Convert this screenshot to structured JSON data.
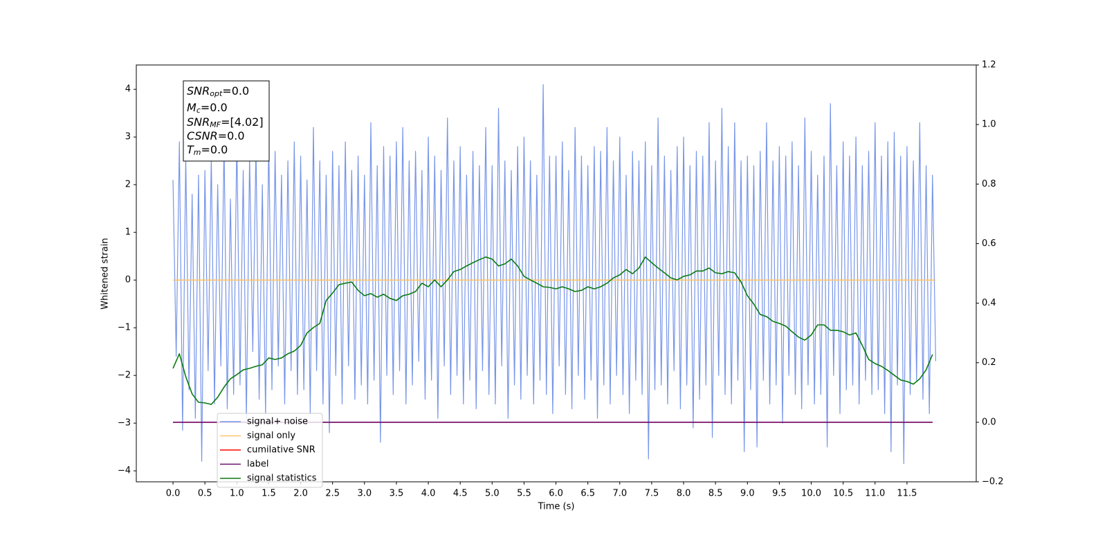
{
  "chart_data": {
    "type": "line",
    "xlabel": "Time (s)",
    "ylabel": "Whitened strain",
    "xlim": [
      -0.575,
      12.585
    ],
    "ylim": [
      -4.23,
      4.51
    ],
    "y2lim": [
      -0.2,
      1.2
    ],
    "xticks": [
      {
        "value": 0,
        "label": "0.0"
      },
      0.5,
      {
        "value": 1,
        "label": "1.0"
      },
      1.5,
      {
        "value": 2,
        "label": "2.0"
      },
      2.5,
      {
        "value": 3,
        "label": "3.0"
      },
      3.5,
      {
        "value": 4,
        "label": "4.0"
      },
      4.5,
      {
        "value": 5,
        "label": "5.0"
      },
      5.5,
      {
        "value": 6,
        "label": "6.0"
      },
      6.5,
      {
        "value": 7,
        "label": "7.0"
      },
      7.5,
      {
        "value": 8,
        "label": "8.0"
      },
      8.5,
      {
        "value": 9,
        "label": "9.0"
      },
      9.5,
      {
        "value": 10,
        "label": "10.0"
      },
      10.5,
      {
        "value": 11,
        "label": "11.0"
      },
      11.5
    ],
    "yticks": [
      {
        "value": -4,
        "label": "−4"
      },
      {
        "value": -3,
        "label": "−3"
      },
      {
        "value": -2,
        "label": "−2"
      },
      {
        "value": -1,
        "label": "−1"
      },
      0,
      1,
      2,
      3,
      4
    ],
    "y2ticks": [
      {
        "value": -0.2,
        "label": "−0.2"
      },
      {
        "value": 0,
        "label": "0.0"
      },
      0.2,
      0.4,
      0.6,
      0.8,
      {
        "value": 1,
        "label": "1.0"
      },
      1.2
    ],
    "annotations": [
      {
        "main": "SNR",
        "sub": "opt",
        "text": "=0.0"
      },
      {
        "main": "M",
        "sub": "c",
        "text": "=0.0"
      },
      {
        "main": "SNR",
        "sub": "MF",
        "text": "=[4.02]"
      },
      {
        "main": "CSNR",
        "text": "=0.0"
      },
      {
        "main": "T",
        "sub": "m",
        "text": "=0.0"
      }
    ],
    "series": [
      {
        "name": "signal+ noise",
        "color": "#7795e8",
        "x": [
          0,
          0.05,
          0.1,
          0.15,
          0.2,
          0.25,
          0.3,
          0.35,
          0.4,
          0.45,
          0.5,
          0.55,
          0.6,
          0.65,
          0.7,
          0.75,
          0.8,
          0.85,
          0.9,
          0.95,
          1,
          1.05,
          1.1,
          1.15,
          1.2,
          1.25,
          1.3,
          1.35,
          1.4,
          1.45,
          1.5,
          1.55,
          1.6,
          1.65,
          1.7,
          1.75,
          1.8,
          1.85,
          1.9,
          1.95,
          2,
          2.05,
          2.1,
          2.15,
          2.2,
          2.25,
          2.3,
          2.35,
          2.4,
          2.45,
          2.5,
          2.55,
          2.6,
          2.65,
          2.7,
          2.75,
          2.8,
          2.85,
          2.9,
          2.95,
          3,
          3.05,
          3.1,
          3.15,
          3.2,
          3.25,
          3.3,
          3.35,
          3.4,
          3.45,
          3.5,
          3.55,
          3.6,
          3.65,
          3.7,
          3.75,
          3.8,
          3.85,
          3.9,
          3.95,
          4,
          4.05,
          4.1,
          4.15,
          4.2,
          4.25,
          4.3,
          4.35,
          4.4,
          4.45,
          4.5,
          4.55,
          4.6,
          4.65,
          4.7,
          4.75,
          4.8,
          4.85,
          4.9,
          4.95,
          5,
          5.05,
          5.1,
          5.15,
          5.2,
          5.25,
          5.3,
          5.35,
          5.4,
          5.45,
          5.5,
          5.55,
          5.6,
          5.65,
          5.7,
          5.75,
          5.8,
          5.85,
          5.9,
          5.95,
          6,
          6.05,
          6.1,
          6.15,
          6.2,
          6.25,
          6.3,
          6.35,
          6.4,
          6.45,
          6.5,
          6.55,
          6.6,
          6.65,
          6.7,
          6.75,
          6.8,
          6.85,
          6.9,
          6.95,
          7,
          7.05,
          7.1,
          7.15,
          7.2,
          7.25,
          7.3,
          7.35,
          7.4,
          7.45,
          7.5,
          7.55,
          7.6,
          7.65,
          7.7,
          7.75,
          7.8,
          7.85,
          7.9,
          7.95,
          8,
          8.05,
          8.1,
          8.15,
          8.2,
          8.25,
          8.3,
          8.35,
          8.4,
          8.45,
          8.5,
          8.55,
          8.6,
          8.65,
          8.7,
          8.75,
          8.8,
          8.85,
          8.9,
          8.95,
          9,
          9.05,
          9.1,
          9.15,
          9.2,
          9.25,
          9.3,
          9.35,
          9.4,
          9.45,
          9.5,
          9.55,
          9.6,
          9.65,
          9.7,
          9.75,
          9.8,
          9.85,
          9.9,
          9.95,
          10,
          10.05,
          10.1,
          10.15,
          10.2,
          10.25,
          10.3,
          10.35,
          10.4,
          10.45,
          10.5,
          10.55,
          10.6,
          10.65,
          10.7,
          10.75,
          10.8,
          10.85,
          10.9,
          10.95,
          11,
          11.05,
          11.1,
          11.15,
          11.2,
          11.25,
          11.3,
          11.35,
          11.4,
          11.45,
          11.5,
          11.55,
          11.6,
          11.65,
          11.7,
          11.75,
          11.8,
          11.85,
          11.9,
          11.95
        ],
        "values": [
          2.1,
          -1.6,
          2.9,
          -3.15,
          2.6,
          -2.3,
          1.8,
          -2.9,
          2.2,
          -3.8,
          2.3,
          -1.9,
          2.6,
          -2.6,
          2.0,
          -1.8,
          2.9,
          -2.7,
          1.7,
          -2.4,
          3.0,
          -2.2,
          2.3,
          -2.9,
          2.6,
          -1.5,
          2.8,
          -2.5,
          2.0,
          -2.8,
          3.0,
          -2.3,
          2.7,
          -1.8,
          2.2,
          -2.6,
          2.5,
          -1.9,
          2.9,
          -2.4,
          2.6,
          -2.3,
          2.1,
          -2.8,
          3.2,
          -1.9,
          2.5,
          -2.6,
          2.2,
          -3.2,
          2.7,
          -2.0,
          2.4,
          -2.6,
          2.9,
          -1.8,
          2.3,
          -2.5,
          2.6,
          -2.2,
          2.2,
          -2.6,
          3.3,
          -2.1,
          2.4,
          -3.4,
          2.8,
          -2.0,
          2.6,
          -2.4,
          2.9,
          -1.9,
          3.2,
          -2.6,
          2.5,
          -2.2,
          2.7,
          -1.7,
          2.3,
          -2.5,
          3.0,
          -2.1,
          2.6,
          -2.9,
          2.3,
          -1.8,
          3.4,
          -2.4,
          2.5,
          -2.0,
          2.8,
          -2.6,
          2.2,
          -2.1,
          2.7,
          -2.7,
          2.4,
          -1.9,
          3.2,
          -2.4,
          2.4,
          -2.6,
          3.6,
          -1.8,
          2.5,
          -2.9,
          2.3,
          -2.2,
          2.8,
          -2.5,
          3.0,
          -2.0,
          2.5,
          -2.6,
          2.2,
          -2.1,
          4.1,
          -2.4,
          2.6,
          -2.8,
          2.6,
          -1.8,
          2.9,
          -2.4,
          2.3,
          -2.7,
          3.2,
          -2.0,
          2.6,
          -2.5,
          2.4,
          -2.1,
          2.8,
          -2.9,
          2.7,
          -2.2,
          3.2,
          -2.6,
          2.5,
          -2.0,
          3.0,
          -2.4,
          2.2,
          -2.8,
          2.7,
          -2.1,
          2.5,
          -2.4,
          2.9,
          -3.75,
          2.4,
          -2.3,
          3.4,
          -2.2,
          2.6,
          -2.6,
          2.3,
          -1.9,
          2.8,
          -2.7,
          3.0,
          -2.2,
          2.4,
          -3.1,
          2.7,
          -2.5,
          2.6,
          -2.2,
          3.3,
          -3.3,
          2.5,
          -2.0,
          3.6,
          -2.4,
          2.8,
          -2.6,
          3.3,
          -2.1,
          2.5,
          -3.6,
          2.6,
          -2.3,
          2.4,
          -3.5,
          2.7,
          -2.1,
          3.3,
          -2.6,
          2.5,
          -2.2,
          2.8,
          -3.0,
          2.6,
          -2.0,
          2.9,
          -2.4,
          2.4,
          -2.7,
          3.4,
          -2.2,
          2.7,
          -2.6,
          2.2,
          -2.4,
          2.6,
          -3.5,
          3.7,
          -2.0,
          2.4,
          -2.8,
          2.9,
          -2.3,
          2.6,
          -2.2,
          3.0,
          -2.6,
          2.4,
          -2.1,
          2.7,
          -2.4,
          3.3,
          -2.3,
          2.6,
          -2.8,
          2.9,
          -3.6,
          3.1,
          -2.2,
          2.6,
          -3.85,
          2.8,
          -2.4,
          2.5,
          -2.1,
          3.3,
          -2.5,
          2.4,
          -2.8,
          2.2,
          -1.7
        ]
      },
      {
        "name": "signal only",
        "color": "#ffc46b",
        "x": [
          0,
          11.95
        ],
        "values": [
          0,
          0
        ]
      },
      {
        "name": "cumilative SNR",
        "color": "#ff0000",
        "axis": "y2",
        "x": [
          0,
          11.9
        ],
        "values": [
          0,
          0
        ]
      },
      {
        "name": "label",
        "color": "#6d0f6d",
        "axis": "y2",
        "x": [
          0,
          11.9
        ],
        "values": [
          0,
          0
        ]
      },
      {
        "name": "signal statistics",
        "color": "#0a7a10",
        "axis": "y2",
        "x": [
          0,
          0.1,
          0.2,
          0.3,
          0.4,
          0.5,
          0.6,
          0.7,
          0.8,
          0.9,
          1,
          1.1,
          1.2,
          1.3,
          1.4,
          1.5,
          1.6,
          1.7,
          1.8,
          1.9,
          2,
          2.1,
          2.2,
          2.3,
          2.4,
          2.5,
          2.6,
          2.7,
          2.8,
          2.9,
          3,
          3.1,
          3.2,
          3.3,
          3.4,
          3.5,
          3.6,
          3.7,
          3.8,
          3.9,
          4,
          4.1,
          4.2,
          4.3,
          4.4,
          4.5,
          4.6,
          4.7,
          4.8,
          4.9,
          5,
          5.1,
          5.2,
          5.3,
          5.4,
          5.5,
          5.6,
          5.7,
          5.8,
          5.9,
          6,
          6.1,
          6.2,
          6.3,
          6.4,
          6.5,
          6.6,
          6.7,
          6.8,
          6.9,
          7,
          7.1,
          7.2,
          7.3,
          7.4,
          7.5,
          7.6,
          7.7,
          7.8,
          7.9,
          8,
          8.1,
          8.2,
          8.3,
          8.4,
          8.5,
          8.6,
          8.7,
          8.8,
          8.9,
          9,
          9.1,
          9.2,
          9.3,
          9.4,
          9.5,
          9.6,
          9.7,
          9.8,
          9.9,
          10,
          10.1,
          10.2,
          10.3,
          10.4,
          10.5,
          10.6,
          10.7,
          10.8,
          10.9,
          11,
          11.1,
          11.2,
          11.3,
          11.4,
          11.5,
          11.6,
          11.7,
          11.8,
          11.9
        ],
        "values": [
          0.181,
          0.23,
          0.153,
          0.095,
          0.067,
          0.065,
          0.06,
          0.084,
          0.118,
          0.146,
          0.16,
          0.176,
          0.181,
          0.188,
          0.193,
          0.216,
          0.211,
          0.216,
          0.23,
          0.239,
          0.258,
          0.3,
          0.318,
          0.332,
          0.409,
          0.434,
          0.462,
          0.467,
          0.471,
          0.443,
          0.425,
          0.432,
          0.42,
          0.43,
          0.416,
          0.409,
          0.425,
          0.43,
          0.439,
          0.467,
          0.455,
          0.478,
          0.455,
          0.478,
          0.506,
          0.513,
          0.525,
          0.536,
          0.546,
          0.555,
          0.548,
          0.525,
          0.532,
          0.548,
          0.525,
          0.49,
          0.478,
          0.467,
          0.455,
          0.453,
          0.448,
          0.455,
          0.448,
          0.439,
          0.443,
          0.455,
          0.448,
          0.455,
          0.467,
          0.485,
          0.495,
          0.513,
          0.499,
          0.518,
          0.555,
          0.536,
          0.518,
          0.502,
          0.485,
          0.478,
          0.49,
          0.495,
          0.508,
          0.508,
          0.518,
          0.502,
          0.499,
          0.506,
          0.502,
          0.471,
          0.425,
          0.397,
          0.362,
          0.355,
          0.339,
          0.332,
          0.323,
          0.304,
          0.286,
          0.276,
          0.293,
          0.327,
          0.327,
          0.309,
          0.309,
          0.304,
          0.293,
          0.3,
          0.258,
          0.211,
          0.197,
          0.188,
          0.174,
          0.158,
          0.142,
          0.137,
          0.128,
          0.146,
          0.176,
          0.228
        ]
      }
    ]
  }
}
